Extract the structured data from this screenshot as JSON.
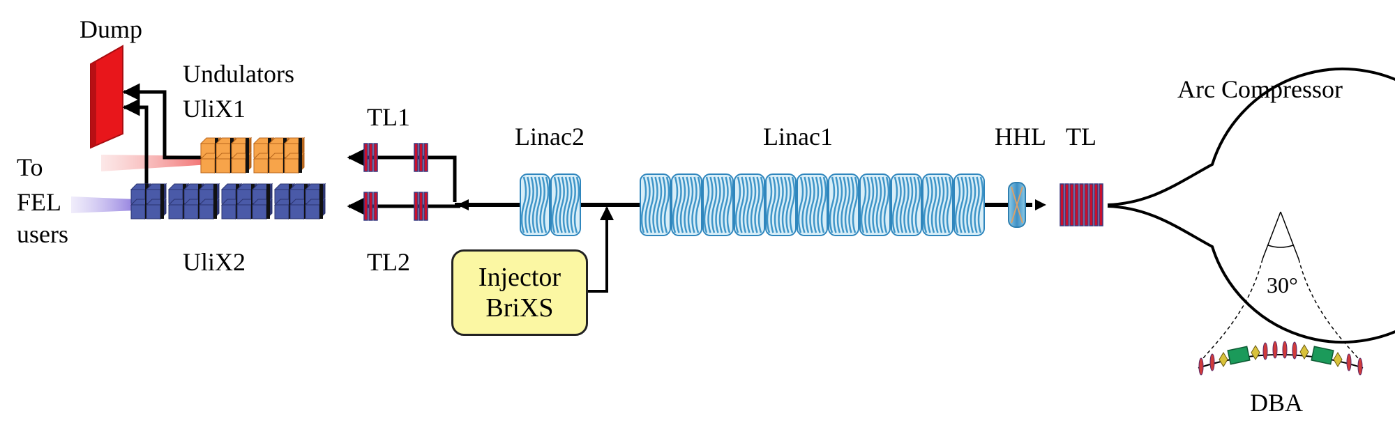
{
  "labels": {
    "dump": "Dump",
    "undulators": "Undulators",
    "ulix1": "UliX1",
    "ulix2": "UliX2",
    "to": "To",
    "fel": "FEL",
    "users": "users",
    "tl1": "TL1",
    "tl2": "TL2",
    "linac2": "Linac2",
    "linac1": "Linac1",
    "hhl": "HHL",
    "tl": "TL",
    "arc_compressor": "Arc Compressor",
    "angle": "30°",
    "dba": "DBA",
    "injector_line1": "Injector",
    "injector_line2": "BriXS"
  },
  "colors": {
    "dump": "#e8161b",
    "undulator_upper": "#f7a44a",
    "undulator_lower": "#4a5aa8",
    "quadrupole": "#c8102e",
    "cavity": "#59a9d6",
    "injector_fill": "#fbf7a3",
    "fel_red_beam": "#f06a6a",
    "fel_violet_beam": "#9a8ae0",
    "dba_magnet": "#1b9a5a"
  },
  "counts": {
    "linac1_cavities": 11,
    "linac2_cavities": 2
  }
}
